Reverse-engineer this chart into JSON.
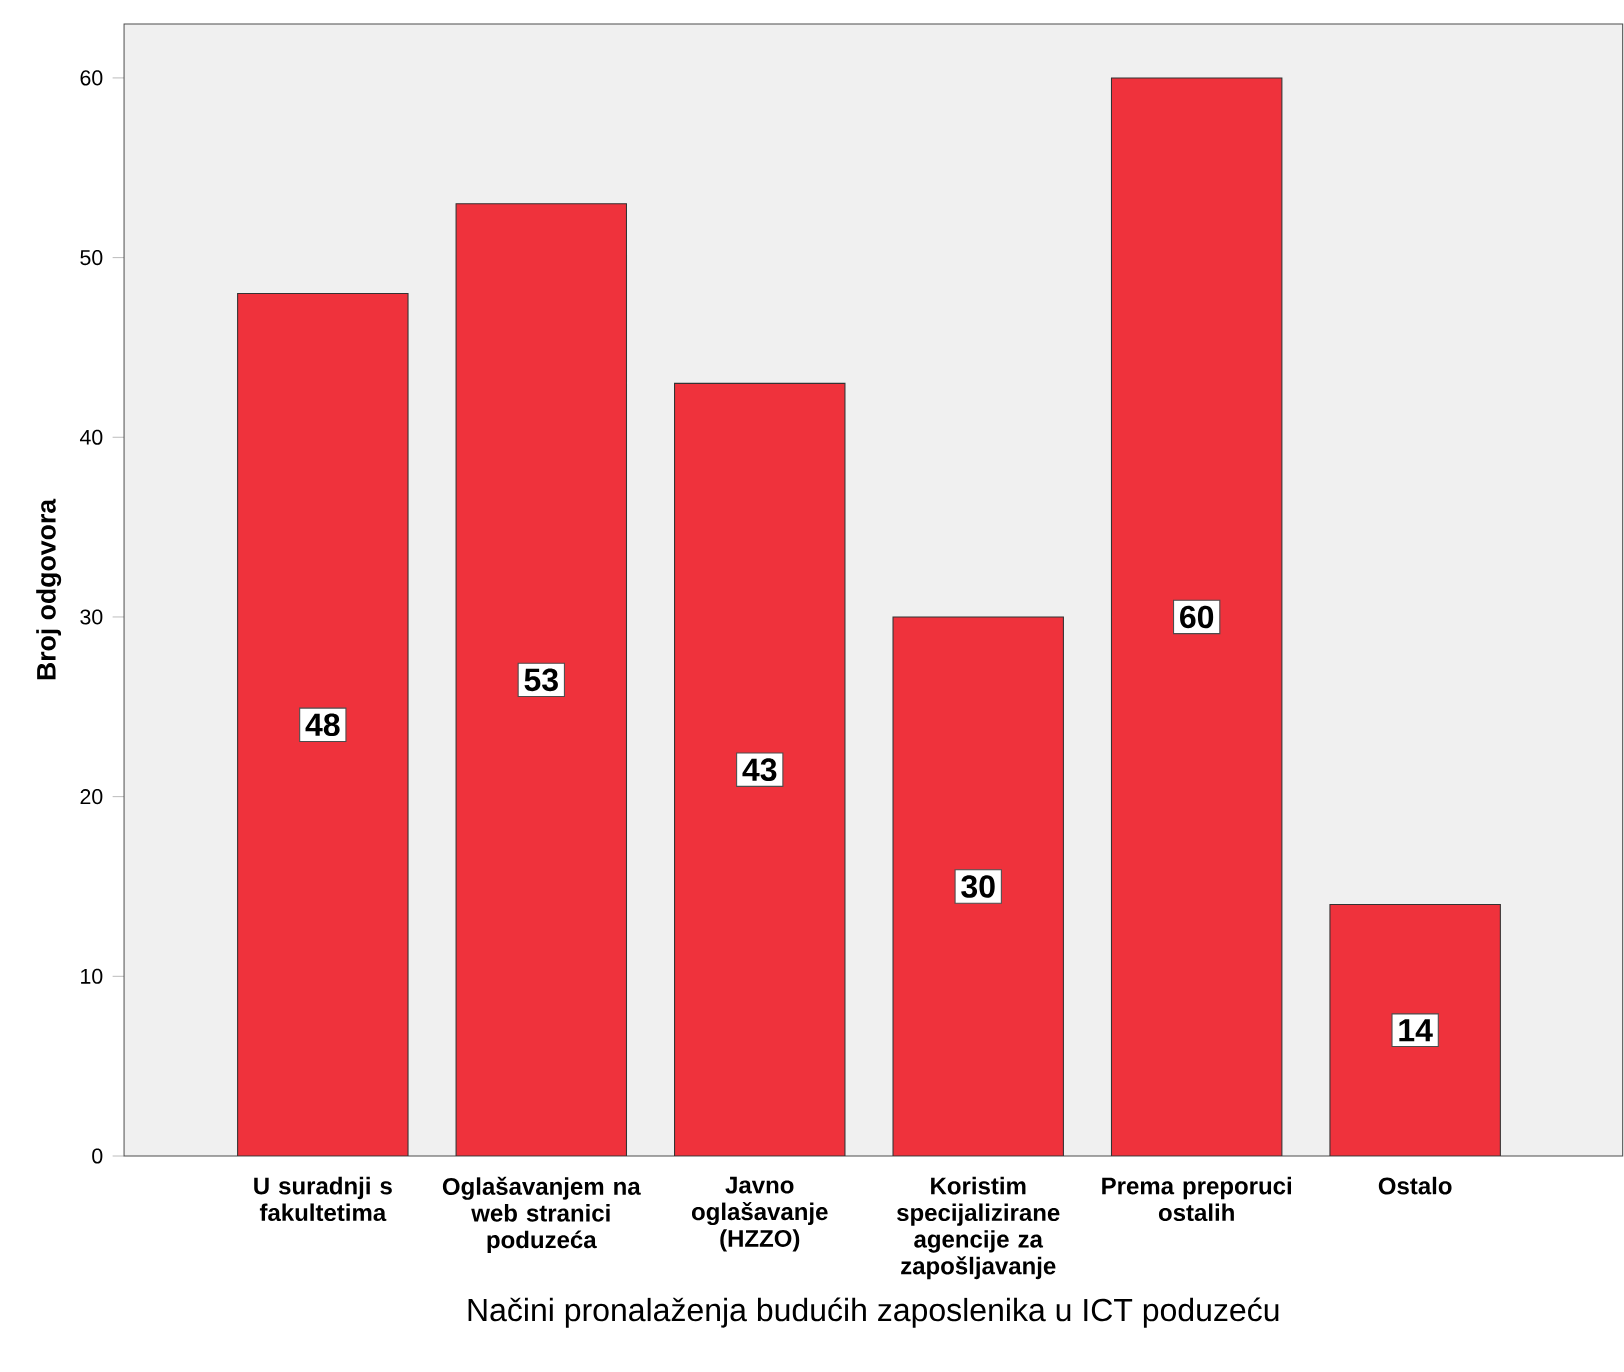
{
  "chart_data": {
    "type": "bar",
    "xlabel": "Načini pronalaženja budućih zaposlenika u ICT poduzeću",
    "ylabel": "Broj odgovora",
    "categories": [
      "U suradnji s fakultetima",
      "Oglašavanjem na web stranici poduzeća",
      "Javno oglašavanje (HZZO)",
      "Koristim specijalizirane agencije za zapošljavanje",
      "Prema preporuci ostalih",
      "Ostalo"
    ],
    "values": [
      48,
      53,
      43,
      30,
      60,
      14
    ],
    "color": "#ef323c",
    "ylim": [
      0,
      63
    ],
    "yticks": [
      0,
      10,
      20,
      30,
      40,
      50,
      60
    ],
    "grid": false,
    "data_labels": true
  }
}
